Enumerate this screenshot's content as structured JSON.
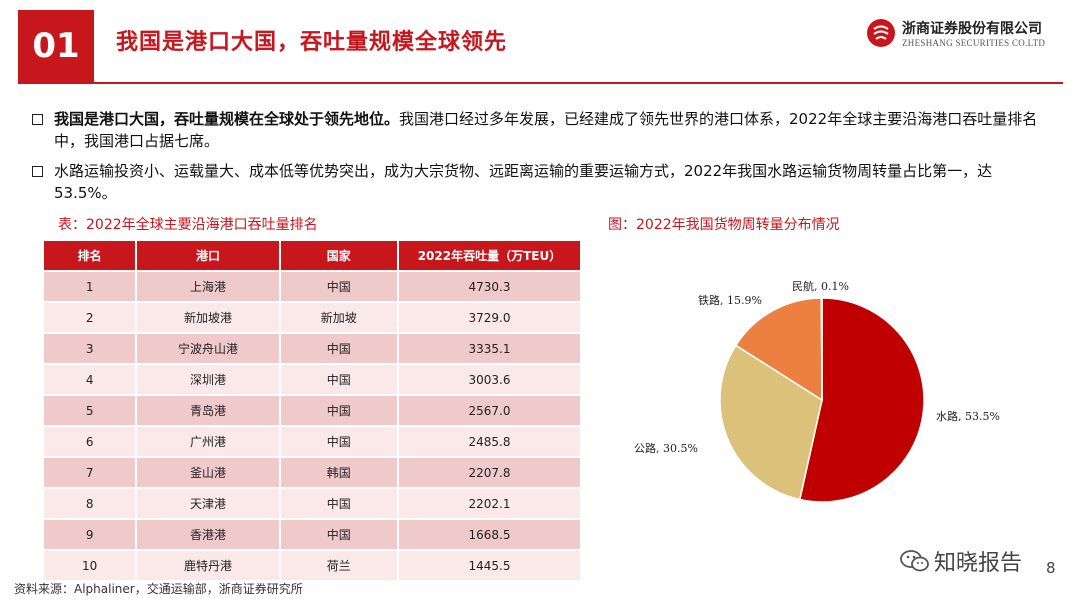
{
  "header": {
    "number": "01",
    "title": "我国是港口大国，吞吐量规模全球领先",
    "logo_cn": "浙商证券股份有限公司",
    "logo_en": "ZHESHANG SECURITIES CO.LTD"
  },
  "bullets": [
    {
      "bold": "我国是港口大国，吞吐量规模在全球处于领先地位。",
      "text": "我国港口经过多年发展，已经建成了领先世界的港口体系，2022年全球主要沿海港口吞吐量排名中，我国港口占据七席。"
    },
    {
      "bold": "",
      "text": "水路运输投资小、运载量大、成本低等优势突出，成为大宗货物、远距离运输的重要运输方式，2022年我国水路运输货物周转量占比第一，达53.5%。"
    }
  ],
  "table": {
    "caption": "表：2022年全球主要沿海港口吞吐量排名",
    "headers": [
      "排名",
      "港口",
      "国家",
      "2022年吞吐量（万TEU）"
    ],
    "rows": [
      [
        "1",
        "上海港",
        "中国",
        "4730.3"
      ],
      [
        "2",
        "新加坡港",
        "新加坡",
        "3729.0"
      ],
      [
        "3",
        "宁波舟山港",
        "中国",
        "3335.1"
      ],
      [
        "4",
        "深圳港",
        "中国",
        "3003.6"
      ],
      [
        "5",
        "青岛港",
        "中国",
        "2567.0"
      ],
      [
        "6",
        "广州港",
        "中国",
        "2485.8"
      ],
      [
        "7",
        "釜山港",
        "韩国",
        "2207.8"
      ],
      [
        "8",
        "天津港",
        "中国",
        "2202.1"
      ],
      [
        "9",
        "香港港",
        "中国",
        "1668.5"
      ],
      [
        "10",
        "鹿特丹港",
        "荷兰",
        "1445.5"
      ]
    ]
  },
  "chart_caption": "图：2022年我国货物周转量分布情况",
  "chart_data": {
    "type": "pie",
    "title": "",
    "slices": [
      {
        "label": "水路, 53.5%",
        "name": "水路",
        "value": 53.5,
        "color": "#c00000"
      },
      {
        "label": "公路, 30.5%",
        "name": "公路",
        "value": 30.5,
        "color": "#dcc17a"
      },
      {
        "label": "铁路, 15.9%",
        "name": "铁路",
        "value": 15.9,
        "color": "#ec8040"
      },
      {
        "label": "民航, 0.1%",
        "name": "民航",
        "value": 0.1,
        "color": "#ffffff"
      }
    ]
  },
  "footer": {
    "source": "资料来源：Alphaliner，交通运输部，浙商证券研究所",
    "watermark": "知晓报告",
    "page": "8"
  },
  "colors": {
    "accent": "#c8161d",
    "row_dark": "#f0c9cb",
    "row_light": "#fbe9ea"
  }
}
